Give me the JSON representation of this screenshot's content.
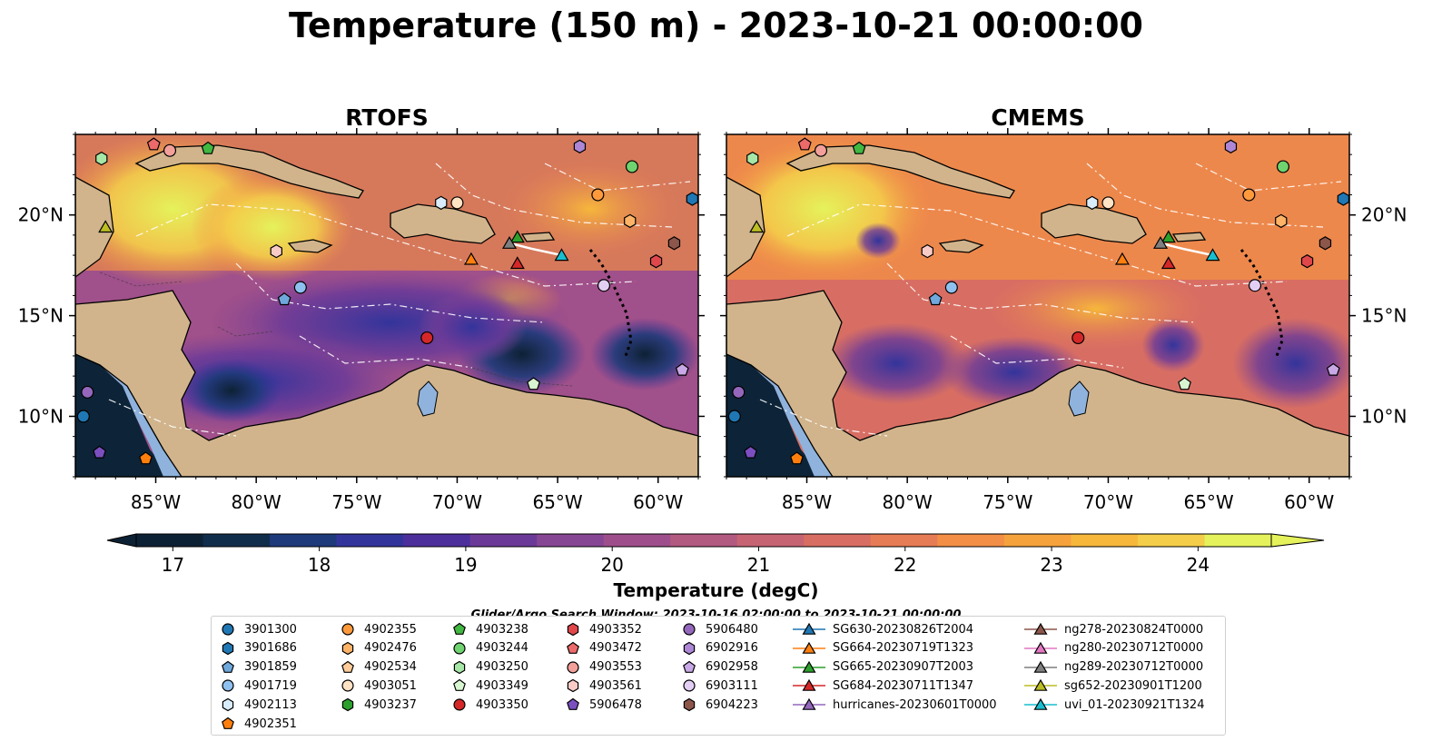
{
  "title": "Temperature (150 m) - 2023-10-21 00:00:00",
  "panels": [
    {
      "title": "RTOFS"
    },
    {
      "title": "CMEMS"
    }
  ],
  "map": {
    "lon_range": [
      -89,
      -58
    ],
    "lat_range": [
      7,
      24
    ],
    "lon_ticks": [
      "85°W",
      "80°W",
      "75°W",
      "70°W",
      "65°W",
      "60°W"
    ],
    "lat_ticks": [
      "20°N",
      "15°N",
      "10°N"
    ],
    "colors": {
      "land": "#d1b48c",
      "shelf": "#8fb3dd",
      "deep_cold": "#0d2438"
    }
  },
  "colorbar": {
    "label": "Temperature (degC)",
    "ticks": [
      "17",
      "18",
      "19",
      "20",
      "21",
      "22",
      "23",
      "24"
    ],
    "range": [
      16.75,
      24.5
    ],
    "colors": [
      "#0d2134",
      "#112d4c",
      "#1e3a7a",
      "#33349b",
      "#4d2f9b",
      "#6b3a98",
      "#874693",
      "#9e4f8b",
      "#b35a80",
      "#c76473",
      "#d86e63",
      "#e67c55",
      "#f28e46",
      "#f5a23c",
      "#f6b73b",
      "#f4cd4a",
      "#e5f25b"
    ]
  },
  "search_window": "Glider/Argo Search Window: 2023-10-16 02:00:00 to 2023-10-21 00:00:00",
  "legend": {
    "columns": [
      [
        {
          "label": "3901300",
          "marker": "circle",
          "color": "#1f77b4"
        },
        {
          "label": "3901686",
          "marker": "hexagon",
          "color": "#1f77b4"
        },
        {
          "label": "3901859",
          "marker": "pentagon",
          "color": "#6fa8dc"
        },
        {
          "label": "4901719",
          "marker": "circle",
          "color": "#8ec1ef"
        },
        {
          "label": "4902113",
          "marker": "hexagon",
          "color": "#d8ecfb"
        },
        {
          "label": "4902351",
          "marker": "pentagon",
          "color": "#ff7f0e"
        }
      ],
      [
        {
          "label": "4902355",
          "marker": "circle",
          "color": "#ff9a3c"
        },
        {
          "label": "4902476",
          "marker": "hexagon",
          "color": "#ffb366"
        },
        {
          "label": "4902534",
          "marker": "pentagon",
          "color": "#ffcc99"
        },
        {
          "label": "4903051",
          "marker": "circle",
          "color": "#ffe3c4"
        },
        {
          "label": "4903237",
          "marker": "hexagon",
          "color": "#2ca02c"
        }
      ],
      [
        {
          "label": "4903238",
          "marker": "pentagon",
          "color": "#41b841"
        },
        {
          "label": "4903244",
          "marker": "circle",
          "color": "#6fd36f"
        },
        {
          "label": "4903250",
          "marker": "hexagon",
          "color": "#a6e6a6"
        },
        {
          "label": "4903349",
          "marker": "pentagon",
          "color": "#d8f7d0"
        },
        {
          "label": "4903350",
          "marker": "circle",
          "color": "#d62728"
        }
      ],
      [
        {
          "label": "4903352",
          "marker": "hexagon",
          "color": "#e0474b"
        },
        {
          "label": "4903472",
          "marker": "pentagon",
          "color": "#ec6a6a"
        },
        {
          "label": "4903553",
          "marker": "circle",
          "color": "#f3a09a"
        },
        {
          "label": "4903561",
          "marker": "hexagon",
          "color": "#f9cbc7"
        },
        {
          "label": "5906478",
          "marker": "pentagon",
          "color": "#7b4fbf"
        }
      ],
      [
        {
          "label": "5906480",
          "marker": "circle",
          "color": "#9467bd"
        },
        {
          "label": "6902916",
          "marker": "hexagon",
          "color": "#ad86d5"
        },
        {
          "label": "6902958",
          "marker": "pentagon",
          "color": "#c8a8e6"
        },
        {
          "label": "6903111",
          "marker": "circle",
          "color": "#e3cff4"
        },
        {
          "label": "6904223",
          "marker": "hexagon",
          "color": "#8c564b"
        }
      ],
      [
        {
          "label": "SG630-20230826T2004",
          "marker": "triangle",
          "color": "#1f77b4"
        },
        {
          "label": "SG664-20230719T1323",
          "marker": "triangle",
          "color": "#ff7f0e"
        },
        {
          "label": "SG665-20230907T2003",
          "marker": "triangle",
          "color": "#2ca02c"
        },
        {
          "label": "SG684-20230711T1347",
          "marker": "triangle",
          "color": "#d62728"
        },
        {
          "label": "hurricanes-20230601T0000",
          "marker": "triangle",
          "color": "#9467bd"
        }
      ],
      [
        {
          "label": "ng278-20230824T0000",
          "marker": "triangle",
          "color": "#8c564b"
        },
        {
          "label": "ng280-20230712T0000",
          "marker": "triangle",
          "color": "#e377c2"
        },
        {
          "label": "ng289-20230712T0000",
          "marker": "triangle",
          "color": "#7f7f7f"
        },
        {
          "label": "sg652-20230901T1200",
          "marker": "triangle",
          "color": "#bcbd22"
        },
        {
          "label": "uvi_01-20230921T1324",
          "marker": "triangle",
          "color": "#17becf"
        }
      ]
    ]
  },
  "markers": [
    {
      "id": "3901300",
      "shape": "circle",
      "color": "#1f77b4",
      "lon": -88.6,
      "lat": 10.0
    },
    {
      "id": "4902355",
      "shape": "circle",
      "color": "#ff9a3c",
      "lon": -63.0,
      "lat": 21.0
    },
    {
      "id": "4903244",
      "shape": "circle",
      "color": "#6fd36f",
      "lon": -61.3,
      "lat": 22.4
    },
    {
      "id": "4903350",
      "shape": "circle",
      "color": "#d62728",
      "lon": -71.5,
      "lat": 13.9
    },
    {
      "id": "4903553",
      "shape": "circle",
      "color": "#f3a09a",
      "lon": -84.3,
      "lat": 23.2
    },
    {
      "id": "4903051",
      "shape": "circle",
      "color": "#ffe3c4",
      "lon": -70.0,
      "lat": 20.6
    },
    {
      "id": "4901719",
      "shape": "circle",
      "color": "#8ec1ef",
      "lon": -77.8,
      "lat": 16.4
    },
    {
      "id": "5906480",
      "shape": "circle",
      "color": "#9467bd",
      "lon": -88.4,
      "lat": 11.2
    },
    {
      "id": "6903111",
      "shape": "circle",
      "color": "#e3cff4",
      "lon": -62.7,
      "lat": 16.5
    },
    {
      "id": "3901686",
      "shape": "hexagon",
      "color": "#1f77b4",
      "lon": -58.3,
      "lat": 20.8
    },
    {
      "id": "4902113",
      "shape": "hexagon",
      "color": "#d8ecfb",
      "lon": -70.8,
      "lat": 20.6
    },
    {
      "id": "4902476",
      "shape": "hexagon",
      "color": "#ffb366",
      "lon": -61.4,
      "lat": 19.7
    },
    {
      "id": "4903250",
      "shape": "hexagon",
      "color": "#a6e6a6",
      "lon": -87.7,
      "lat": 22.8
    },
    {
      "id": "4903352",
      "shape": "hexagon",
      "color": "#e0474b",
      "lon": -60.1,
      "lat": 17.7
    },
    {
      "id": "4903561",
      "shape": "hexagon",
      "color": "#f9cbc7",
      "lon": -79.0,
      "lat": 18.2
    },
    {
      "id": "6902916",
      "shape": "hexagon",
      "color": "#ad86d5",
      "lon": -63.9,
      "lat": 23.4
    },
    {
      "id": "6904223",
      "shape": "hexagon",
      "color": "#8c564b",
      "lon": -59.2,
      "lat": 18.6
    },
    {
      "id": "3901859",
      "shape": "pentagon",
      "color": "#6fa8dc",
      "lon": -78.6,
      "lat": 15.8
    },
    {
      "id": "4902351",
      "shape": "pentagon",
      "color": "#ff7f0e",
      "lon": -85.5,
      "lat": 7.9
    },
    {
      "id": "4903238",
      "shape": "pentagon",
      "color": "#41b841",
      "lon": -82.4,
      "lat": 23.3
    },
    {
      "id": "4903349",
      "shape": "pentagon",
      "color": "#d8f7d0",
      "lon": -66.2,
      "lat": 11.6
    },
    {
      "id": "4903472",
      "shape": "pentagon",
      "color": "#ec6a6a",
      "lon": -85.1,
      "lat": 23.5
    },
    {
      "id": "5906478",
      "shape": "pentagon",
      "color": "#7b4fbf",
      "lon": -87.8,
      "lat": 8.2
    },
    {
      "id": "6902958",
      "shape": "pentagon",
      "color": "#c8a8e6",
      "lon": -58.8,
      "lat": 12.3
    },
    {
      "id": "SG664-20230719T1323",
      "shape": "triangle",
      "color": "#ff7f0e",
      "lon": -69.3,
      "lat": 17.8
    },
    {
      "id": "SG684-20230711T1347",
      "shape": "triangle",
      "color": "#d62728",
      "lon": -67.0,
      "lat": 17.6
    },
    {
      "id": "SG665-20230907T2003",
      "shape": "triangle",
      "color": "#2ca02c",
      "lon": -67.0,
      "lat": 18.9
    },
    {
      "id": "ng289-20230712T0000",
      "shape": "triangle",
      "color": "#7f7f7f",
      "lon": -67.4,
      "lat": 18.6
    },
    {
      "id": "uvi_01-20230921T1324",
      "shape": "triangle",
      "color": "#17becf",
      "lon": -64.8,
      "lat": 18.0
    },
    {
      "id": "sg652-20230901T1200",
      "shape": "triangle",
      "color": "#bcbd22",
      "lon": -87.5,
      "lat": 19.4
    }
  ]
}
